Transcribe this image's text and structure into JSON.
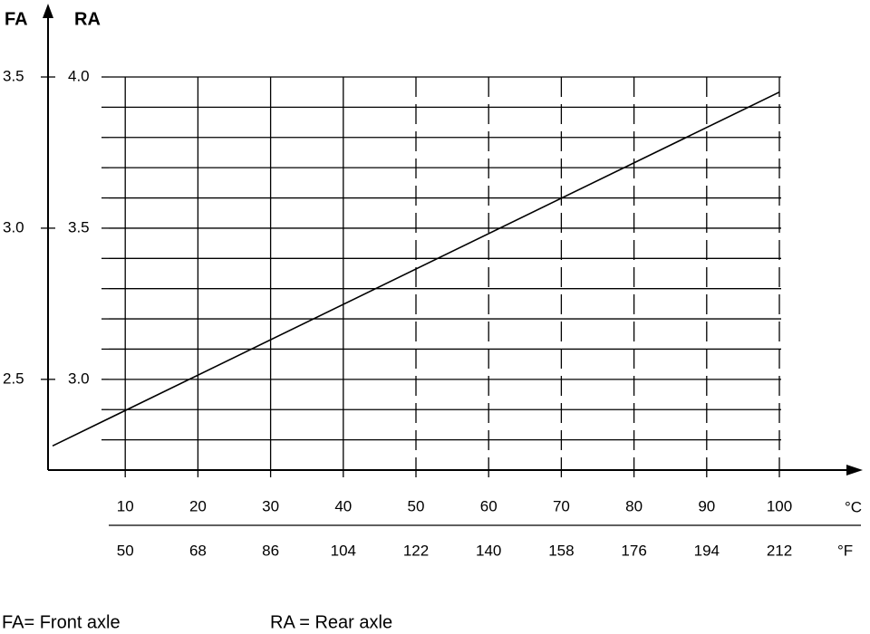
{
  "chart_data": {
    "type": "line",
    "ylabel": "FA",
    "y2label": "RA",
    "ylim": [
      2.2,
      3.5
    ],
    "yticks": [
      {
        "value": 2.5,
        "label": "2.5"
      },
      {
        "value": 3,
        "label": "3.0"
      },
      {
        "value": 3.5,
        "label": "3.5"
      }
    ],
    "y2lim": [
      2.7,
      4.0
    ],
    "y2ticks": [
      {
        "value": 3,
        "label": "3.0"
      },
      {
        "value": 3.5,
        "label": "3.5"
      },
      {
        "value": 4,
        "label": "4.0"
      }
    ],
    "y2minorticks": [
      2.8,
      2.9,
      3.1,
      3.2,
      3.3,
      3.4,
      3.6,
      3.7,
      3.8,
      3.9
    ],
    "xlim": [
      0,
      100
    ],
    "xticks": [
      10,
      20,
      30,
      40,
      50,
      60,
      70,
      80,
      90,
      100
    ],
    "xtick_labels_f": [
      "50",
      "68",
      "86",
      "104",
      "122",
      "140",
      "158",
      "176",
      "194",
      "212"
    ],
    "xunit": "°C",
    "xunit_f": "°F",
    "grid": true,
    "series": [
      {
        "axis": "y2",
        "color": "#000000",
        "x": [
          0,
          100
        ],
        "values": [
          2.78,
          3.95
        ]
      }
    ],
    "legend": [
      "FA= Front axle",
      "RA = Rear axle"
    ]
  }
}
